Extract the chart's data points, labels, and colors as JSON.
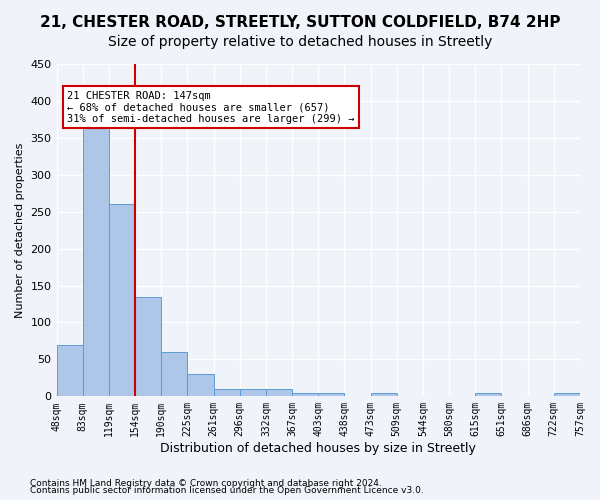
{
  "title1": "21, CHESTER ROAD, STREETLY, SUTTON COLDFIELD, B74 2HP",
  "title2": "Size of property relative to detached houses in Streetly",
  "xlabel": "Distribution of detached houses by size in Streetly",
  "ylabel": "Number of detached properties",
  "bins": [
    "48sqm",
    "83sqm",
    "119sqm",
    "154sqm",
    "190sqm",
    "225sqm",
    "261sqm",
    "296sqm",
    "332sqm",
    "367sqm",
    "403sqm",
    "438sqm",
    "473sqm",
    "509sqm",
    "544sqm",
    "580sqm",
    "615sqm",
    "651sqm",
    "686sqm",
    "722sqm",
    "757sqm"
  ],
  "values": [
    70,
    380,
    260,
    135,
    60,
    30,
    10,
    10,
    10,
    5,
    5,
    0,
    4,
    0,
    0,
    0,
    4,
    0,
    0,
    4
  ],
  "bar_color": "#aec6e8",
  "bar_edge_color": "#5b9bd5",
  "property_line_x": 4,
  "property_line_color": "#cc0000",
  "annotation_text": "21 CHESTER ROAD: 147sqm\n← 68% of detached houses are smaller (657)\n31% of semi-detached houses are larger (299) →",
  "annotation_box_color": "#ffffff",
  "annotation_box_edge": "#cc0000",
  "ylim": [
    0,
    450
  ],
  "yticks": [
    0,
    50,
    100,
    150,
    200,
    250,
    300,
    350,
    400,
    450
  ],
  "footnote1": "Contains HM Land Registry data © Crown copyright and database right 2024.",
  "footnote2": "Contains public sector information licensed under the Open Government Licence v3.0.",
  "background_color": "#f0f4fa",
  "grid_color": "#ffffff",
  "title1_fontsize": 11,
  "title2_fontsize": 10
}
